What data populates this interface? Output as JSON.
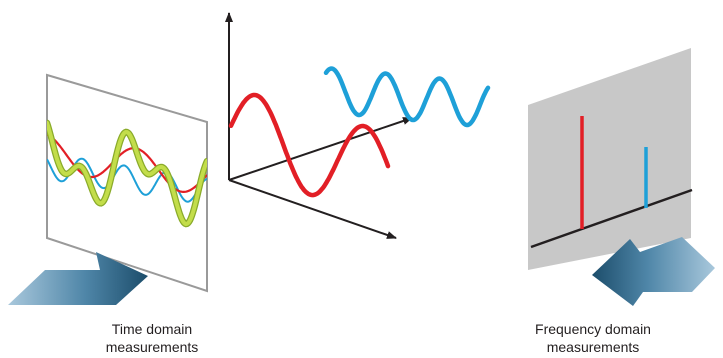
{
  "captions": {
    "time_line1": "Time domain",
    "time_line2": "measurements",
    "freq_line1": "Frequency domain",
    "freq_line2": "measurements"
  },
  "colors": {
    "red_signal": "#e21f26",
    "blue_signal": "#1ea0d8",
    "sum_signal": "#b2d235",
    "frequency_panel": "#c8c8c8",
    "arrow_dark": "#1e4f6e",
    "arrow_light": "#9fc2d8",
    "axes": "#231f20"
  },
  "icons": {
    "time_view_arrow": "arrow-right-icon",
    "frequency_view_arrow": "arrow-up-left-icon"
  }
}
